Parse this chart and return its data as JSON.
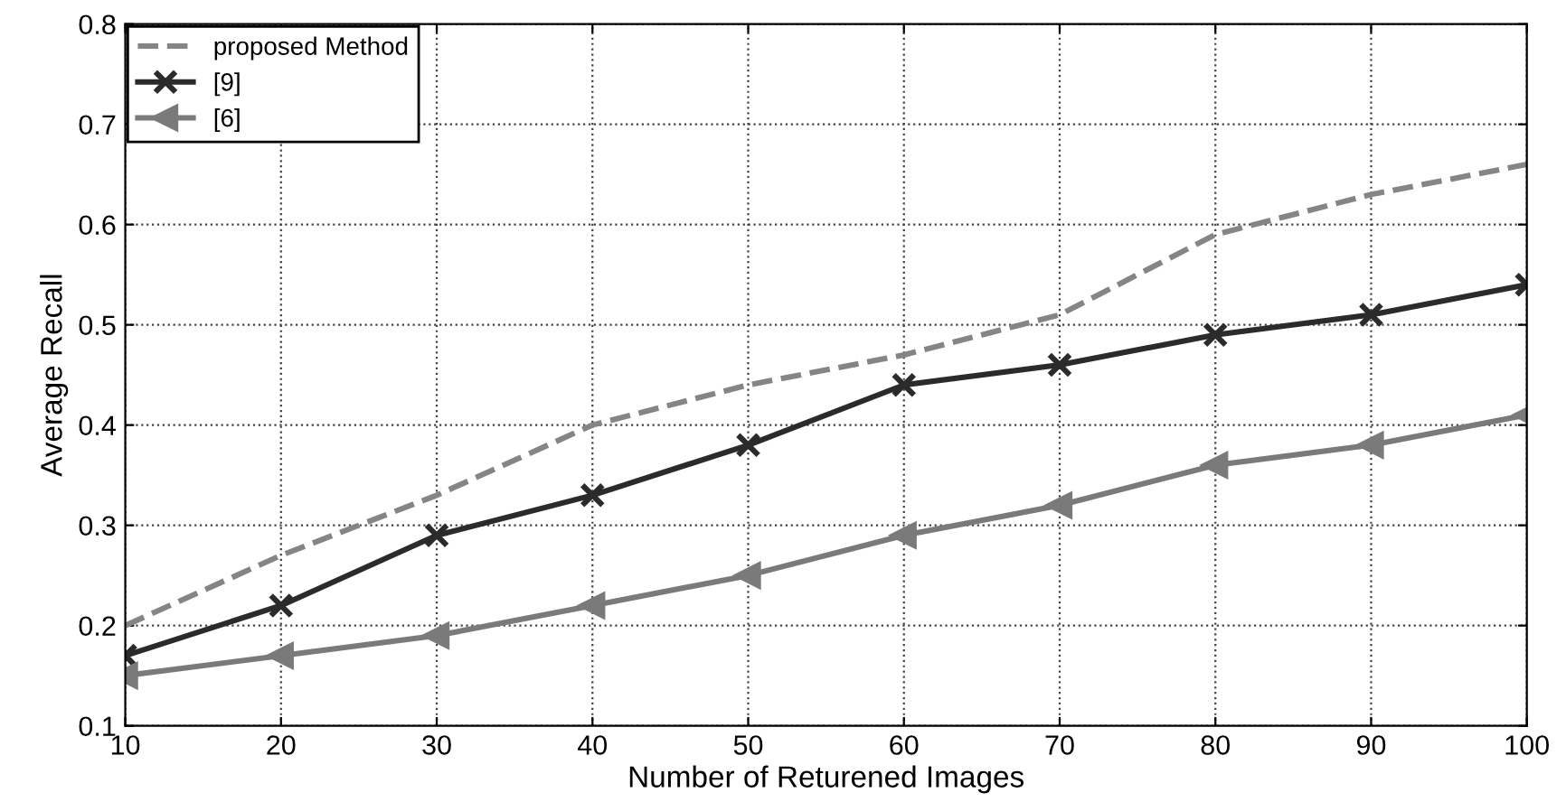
{
  "chart_data": {
    "type": "line",
    "xlabel": "Number of Returened Images",
    "ylabel": "Average Recall",
    "x": [
      10,
      20,
      30,
      40,
      50,
      60,
      70,
      80,
      90,
      100
    ],
    "series": [
      {
        "name": "proposed Method",
        "color": "#858585",
        "line_style": "dashed",
        "marker": "none",
        "values": [
          0.2,
          0.27,
          0.33,
          0.4,
          0.44,
          0.47,
          0.51,
          0.59,
          0.63,
          0.66
        ]
      },
      {
        "name": "[9]",
        "color": "#2b2b2b",
        "line_style": "solid",
        "marker": "cross",
        "values": [
          0.17,
          0.22,
          0.29,
          0.33,
          0.38,
          0.44,
          0.46,
          0.49,
          0.51,
          0.54
        ]
      },
      {
        "name": "[6]",
        "color": "#7a7a7a",
        "line_style": "solid",
        "marker": "triangle",
        "values": [
          0.15,
          0.17,
          0.19,
          0.22,
          0.25,
          0.29,
          0.32,
          0.36,
          0.38,
          0.41
        ]
      }
    ],
    "xlim": [
      10,
      100
    ],
    "xticks": [
      10,
      20,
      30,
      40,
      50,
      60,
      70,
      80,
      90,
      100
    ],
    "ylim": [
      0.1,
      0.8
    ],
    "yticks": [
      0.1,
      0.2,
      0.3,
      0.4,
      0.5,
      0.6,
      0.7,
      0.8
    ],
    "grid": true,
    "legend": "top left"
  }
}
